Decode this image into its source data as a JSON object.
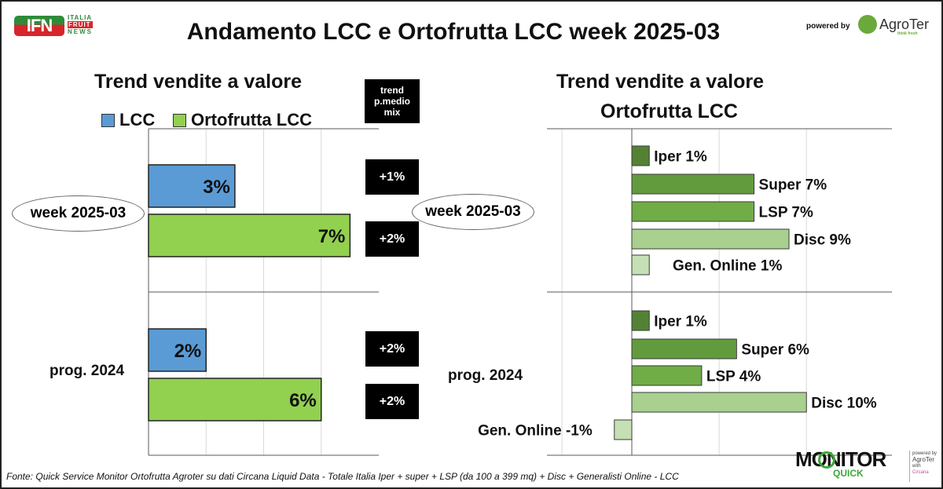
{
  "header": {
    "title": "Andamento LCC e Ortofrutta LCC week 2025-03",
    "logo_left": {
      "big": "IFN",
      "lines": [
        "ITALIA",
        "FRUIT",
        "NEWS"
      ]
    },
    "powered_by": "powered by",
    "brand": "AgroTer",
    "brand_tag": "think fresh"
  },
  "footer": {
    "source": "Fonte: Quick Service Monitor Ortofrutta Agroter su dati Circana Liquid Data - Totale Italia Iper + super + LSP (da 100 a 399 mq) + Disc + Generalisti Online - LCC",
    "monitor_logo": "MONITOR",
    "monitor_sub": "QUICK",
    "mini_powered": "powered by",
    "mini_brand": "AgroTer",
    "mini_with": "with",
    "mini_circana": "Circana"
  },
  "trend_box": {
    "header": [
      "trend",
      "p.medio",
      "mix"
    ]
  },
  "colors": {
    "lcc": "#5b9bd5",
    "ortofrutta": "#92d050",
    "iper": "#548235",
    "super": "#629b3e",
    "lsp": "#70ad47",
    "disc": "#a9d08e",
    "online": "#c5e0b4"
  },
  "chart_data": [
    {
      "type": "bar",
      "title": "Trend vendite a valore",
      "legend": [
        "LCC",
        "Ortofrutta LCC"
      ],
      "legend_position": "top",
      "categories": [
        "week 2025-03",
        "prog. 2024"
      ],
      "series": [
        {
          "name": "LCC",
          "values": [
            3,
            2
          ],
          "labels": [
            "3%",
            "2%"
          ]
        },
        {
          "name": "Ortofrutta LCC",
          "values": [
            7,
            6
          ],
          "labels": [
            "7%",
            "6%"
          ]
        }
      ],
      "trend_pmedio_mix": [
        [
          "+1%",
          "+2%"
        ],
        [
          "+2%",
          "+2%"
        ]
      ],
      "xlim": [
        0,
        8
      ],
      "grid": true
    },
    {
      "type": "bar",
      "title": "Trend vendite a valore Ortofrutta LCC",
      "title_lines": [
        "Trend vendite a valore",
        "Ortofrutta LCC"
      ],
      "categories": [
        "week 2025-03",
        "prog. 2024"
      ],
      "groups": [
        {
          "category": "week 2025-03",
          "bars": [
            {
              "name": "Iper",
              "value": 1,
              "label": "Iper 1%"
            },
            {
              "name": "Super",
              "value": 7,
              "label": "Super 7%"
            },
            {
              "name": "LSP",
              "value": 7,
              "label": "LSP 7%"
            },
            {
              "name": "Disc",
              "value": 9,
              "label": "Disc 9%"
            },
            {
              "name": "Gen. Online",
              "value": 1,
              "label": "Gen. Online 1%"
            }
          ]
        },
        {
          "category": "prog. 2024",
          "bars": [
            {
              "name": "Iper",
              "value": 1,
              "label": "Iper 1%"
            },
            {
              "name": "Super",
              "value": 6,
              "label": "Super 6%"
            },
            {
              "name": "LSP",
              "value": 4,
              "label": "LSP 4%"
            },
            {
              "name": "Disc",
              "value": 10,
              "label": "Disc 10%"
            },
            {
              "name": "Gen. Online",
              "value": -1,
              "label": "Gen. Online -1%"
            }
          ]
        }
      ],
      "xlim": [
        -5,
        14
      ],
      "grid": true
    }
  ]
}
